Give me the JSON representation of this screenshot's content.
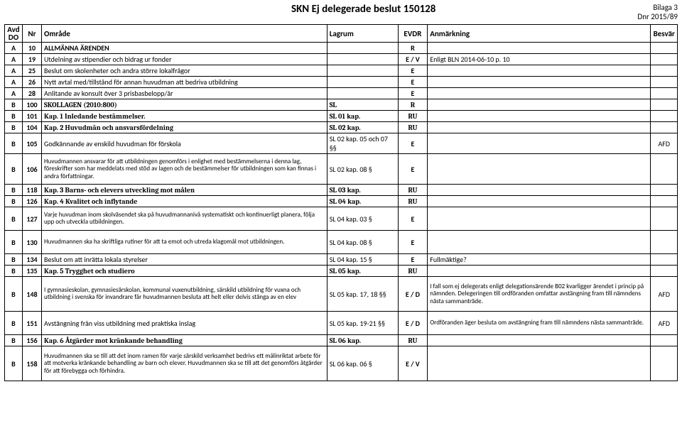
{
  "header": {
    "title": "SKN Ej delegerade beslut 150128",
    "bilaga_line1": "Bilaga 3",
    "bilaga_line2": "Dnr 2015/89"
  },
  "columns": {
    "avd": "Avd DO",
    "nr": "Nr",
    "omrade": "Område",
    "lagrum": "Lagrum",
    "evdr": "EVDR",
    "anm": "Anmärkning",
    "besvar": "Besvär"
  },
  "rows": [
    {
      "avd": "A",
      "nr": "10",
      "omr": "ALLMÄNNA ÄRENDEN",
      "lag": "",
      "evdr": "R",
      "anm": "",
      "bes": "",
      "bold": true
    },
    {
      "avd": "A",
      "nr": "19",
      "omr": "Utdelning av stipendier och bidrag ur fonder",
      "lag": "",
      "evdr": "E / V",
      "anm": "Enligt BLN 2014-06-10 p. 10",
      "bes": ""
    },
    {
      "avd": "A",
      "nr": "25",
      "omr": "Beslut om skolenheter och andra större lokalfrågor",
      "lag": "",
      "evdr": "E",
      "anm": "",
      "bes": ""
    },
    {
      "avd": "A",
      "nr": "26",
      "omr": "Nytt avtal med/tillstånd för annan huvudman att bedriva utbildning",
      "lag": "",
      "evdr": "E",
      "anm": "",
      "bes": ""
    },
    {
      "avd": "A",
      "nr": "28",
      "omr": "Anlitande av konsult över 3 prisbasbelopp/år",
      "lag": "",
      "evdr": "E",
      "anm": "",
      "bes": ""
    },
    {
      "avd": "B",
      "nr": "100",
      "omr": "SKOLLAGEN (2010:800)",
      "lag": "SL",
      "evdr": "R",
      "anm": "",
      "bes": "",
      "bold": true,
      "serif": true
    },
    {
      "avd": "B",
      "nr": "101",
      "omr": "Kap. 1 Inledande bestämmelser.",
      "lag": "SL 01 kap.",
      "evdr": "RU",
      "anm": "",
      "bes": "",
      "bold": true,
      "serif": true
    },
    {
      "avd": "B",
      "nr": "104",
      "omr": "Kap. 2 Huvudmän och ansvarsfördelning",
      "lag": "SL 02 kap.",
      "evdr": "RU",
      "anm": "",
      "bes": "",
      "bold": true,
      "serif": true
    },
    {
      "avd": "B",
      "nr": "105",
      "omr": "Godkännande av enskild huvudman för förskola",
      "lag": "SL 02 kap. 05 och 07 §§",
      "evdr": "E",
      "anm": "",
      "bes": "AFD"
    },
    {
      "avd": "B",
      "nr": "106",
      "omr": "Huvudmannen ansvarar för att utbildningen genomförs i enlighet med bestämmelserna i denna lag, föreskrifter som har meddelats med stöd av lagen och de bestämmelser för utbildningen som kan finnas i andra författningar.",
      "lag": "SL 02 kap. 08 §",
      "evdr": "E",
      "anm": "",
      "bes": "",
      "tall": true,
      "small": true
    },
    {
      "avd": "B",
      "nr": "118",
      "omr": "Kap. 3 Barns- och elevers utveckling mot målen",
      "lag": "SL 03 kap.",
      "evdr": "RU",
      "anm": "",
      "bes": "",
      "bold": true,
      "serif": true
    },
    {
      "avd": "B",
      "nr": "126",
      "omr": "Kap. 4 Kvalitet och inflytande",
      "lag": "SL 04 kap.",
      "evdr": "RU",
      "anm": "",
      "bes": "",
      "bold": true,
      "serif": true
    },
    {
      "avd": "B",
      "nr": "127",
      "omr": "Varje huvudman inom skolväsendet ska på huvudmannanivå systematiskt och kontinuerligt planera, följa upp och utveckla utbildningen.",
      "lag": "SL 04 kap. 03 §",
      "evdr": "E",
      "anm": "",
      "bes": "",
      "tall2": true,
      "small": true
    },
    {
      "avd": "B",
      "nr": "130",
      "omr": "Huvudmannen ska ha skriftliga rutiner för att ta emot och utreda klagomål mot utbildningen.",
      "lag": "SL 04 kap. 08 §",
      "evdr": "E",
      "anm": "",
      "bes": "",
      "tall2": true,
      "small": true
    },
    {
      "avd": "B",
      "nr": "134",
      "omr": "Beslut om att inrätta lokala styrelser",
      "lag": "SL 04 kap. 15 §",
      "evdr": "E",
      "anm": "Fullmäktige?",
      "bes": ""
    },
    {
      "avd": "B",
      "nr": "135",
      "omr": "Kap. 5 Trygghet och studiero",
      "lag": "SL 05 kap.",
      "evdr": "RU",
      "anm": "",
      "bes": "",
      "bold": true,
      "serif": true
    },
    {
      "avd": "B",
      "nr": "148",
      "omr": "I gymnasieskolan, gymnasiesärskolan, kommunal vuxenutbildning, särskild utbildning för vuxna och utbildning i svenska för invandrare får huvudmannen besluta att helt eller delvis stänga av en elev",
      "lag": "SL 05 kap. 17, 18 §§",
      "evdr": "E / D",
      "anm": "I fall som ej delegerats enligt delegationsärende B02 kvarligger ärendet i princip på nämnden. Delegeringen till ordföranden omfattar avstängning fram till nämndens nästa sammanträde.",
      "bes": "AFD",
      "tall3": true,
      "small": true,
      "anmSmall": true
    },
    {
      "avd": "B",
      "nr": "151",
      "omr": "Avstängning från viss utbildning med praktiska inslag",
      "lag": "SL 05 kap. 19-21 §§",
      "evdr": "E / D",
      "anm": "Ordföranden äger besluta om avstängning fram till nämndens nästa sammanträde.",
      "bes": "AFD",
      "tall2": true,
      "anmSmall": true
    },
    {
      "avd": "B",
      "nr": "156",
      "omr": "Kap. 6 Åtgärder mot kränkande behandling",
      "lag": "SL 06 kap.",
      "evdr": "RU",
      "anm": "",
      "bes": "",
      "bold": true,
      "serif": true
    },
    {
      "avd": "B",
      "nr": "158",
      "omr": "Huvudmannen ska se till att det inom ramen för varje särskild verksamhet bedrivs ett målinriktat arbete för att motverka kränkande behandling av barn och elever. Huvudmannen ska se till att det genomförs åtgärder för att förebygga och förhindra.",
      "lag": "SL 06 kap. 06 §",
      "evdr": "E / V",
      "anm": "",
      "bes": "",
      "tall3": true,
      "small": true
    }
  ]
}
